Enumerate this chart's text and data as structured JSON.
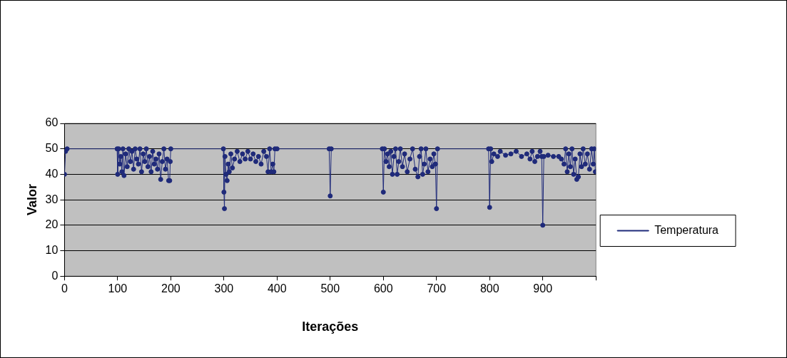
{
  "chart_data": {
    "type": "line",
    "xlabel": "Iterações",
    "ylabel": "Valor",
    "x": [
      0,
      2,
      5,
      99,
      100,
      102,
      104,
      106,
      108,
      110,
      112,
      115,
      118,
      121,
      124,
      127,
      130,
      133,
      136,
      139,
      142,
      145,
      148,
      151,
      154,
      157,
      160,
      163,
      166,
      169,
      172,
      175,
      178,
      181,
      184,
      187,
      190,
      193,
      196,
      198,
      199,
      200,
      299,
      300,
      301,
      302,
      304,
      306,
      308,
      310,
      313,
      316,
      320,
      325,
      330,
      335,
      340,
      345,
      350,
      355,
      360,
      365,
      370,
      375,
      380,
      383,
      386,
      389,
      392,
      394,
      396,
      400,
      498,
      500,
      502,
      598,
      600,
      602,
      605,
      608,
      611,
      614,
      617,
      620,
      623,
      626,
      629,
      632,
      636,
      640,
      645,
      650,
      655,
      660,
      665,
      668,
      671,
      674,
      677,
      680,
      684,
      688,
      692,
      695,
      698,
      700,
      702,
      798,
      800,
      802,
      804,
      808,
      815,
      820,
      830,
      840,
      850,
      860,
      870,
      876,
      880,
      885,
      890,
      895,
      898,
      900,
      902,
      910,
      920,
      930,
      935,
      940,
      943,
      946,
      949,
      952,
      955,
      958,
      961,
      964,
      967,
      970,
      973,
      976,
      980,
      984,
      988,
      992,
      995,
      997,
      999
    ],
    "series": [
      {
        "name": "Temperatura",
        "color": "#1f2a7a",
        "values": [
          40,
          49,
          50,
          50,
          40,
          50,
          44,
          47,
          41,
          50,
          39.5,
          48,
          43,
          50,
          45,
          49,
          42,
          50,
          46,
          44,
          50,
          41,
          48,
          45,
          50,
          43,
          47,
          41,
          49,
          44,
          46,
          42,
          48,
          38,
          45,
          50,
          42,
          46,
          37.5,
          37.5,
          45,
          50,
          50,
          33,
          26.5,
          47,
          40,
          37.5,
          44,
          41,
          48,
          42.5,
          46,
          49,
          45,
          48,
          46,
          49,
          46,
          48,
          45,
          47,
          44,
          49,
          47,
          41,
          50,
          41,
          44,
          41,
          50,
          50,
          50,
          31.5,
          50,
          50,
          33,
          50,
          45,
          48,
          43,
          49,
          40,
          47,
          50,
          40,
          45,
          50,
          43,
          48,
          41,
          46,
          50,
          42,
          39,
          47,
          50,
          40,
          44,
          50,
          41,
          46,
          43,
          48,
          44,
          26.5,
          50,
          50,
          27,
          50,
          45,
          48,
          47,
          49,
          47.5,
          48,
          49,
          47,
          48,
          46,
          49,
          45,
          47,
          49,
          47,
          20,
          47,
          47.5,
          47,
          47,
          46,
          44,
          50,
          41,
          48,
          43,
          50,
          40,
          46,
          38,
          39,
          48,
          43,
          50,
          44,
          48,
          42,
          50,
          44,
          50,
          41
        ]
      }
    ],
    "xlim": [
      0,
      1000
    ],
    "xticks": [
      0,
      100,
      200,
      300,
      400,
      500,
      600,
      700,
      800,
      900,
      {
        "value": 1000,
        "label": null
      }
    ],
    "ylim": [
      0,
      60
    ],
    "yticks": [
      0,
      10,
      20,
      30,
      40,
      50,
      60
    ],
    "grid": "y",
    "legend": "right",
    "marker": "circle"
  }
}
